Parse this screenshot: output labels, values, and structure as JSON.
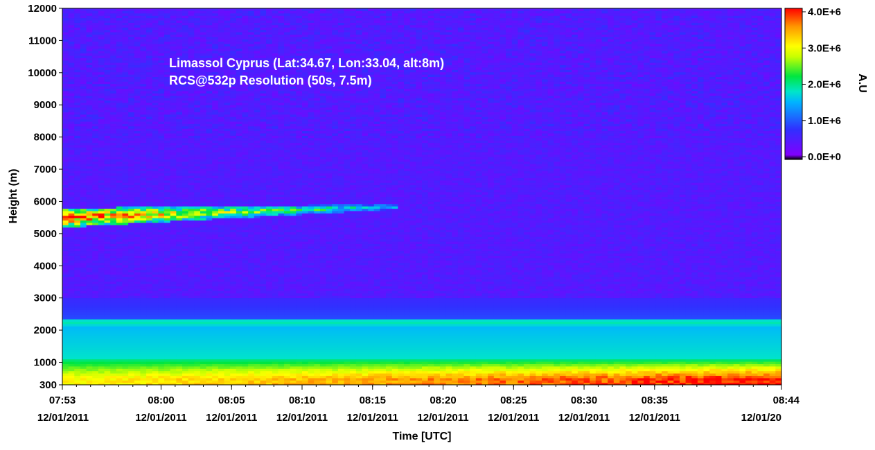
{
  "chart_data": {
    "type": "heatmap",
    "title": "",
    "annotations": [
      "Limassol Cyprus (Lat:34.67, Lon:33.04, alt:8m)",
      "RCS@532p Resolution (50s, 7.5m)"
    ],
    "xlabel": "Time [UTC]",
    "ylabel": "Height (m)",
    "colorbar_label": "A.U",
    "colorbar_ticks": [
      "4.0E+6",
      "3.0E+6",
      "2.0E+6",
      "1.0E+6",
      "0.0E+0"
    ],
    "colorbar_range": [
      0,
      4000000
    ],
    "colormap": [
      "#000000",
      "#8000ff",
      "#3030ff",
      "#00b4ff",
      "#00e6c8",
      "#00e640",
      "#c8ff00",
      "#ffff00",
      "#ff9600",
      "#ff0000"
    ],
    "x_ticks": [
      {
        "time": "07:53",
        "date": "12/01/2011"
      },
      {
        "time": "08:00",
        "date": "12/01/2011"
      },
      {
        "time": "08:05",
        "date": "12/01/2011"
      },
      {
        "time": "08:10",
        "date": "12/01/2011"
      },
      {
        "time": "08:15",
        "date": "12/01/2011"
      },
      {
        "time": "08:20",
        "date": "12/01/2011"
      },
      {
        "time": "08:25",
        "date": "12/01/2011"
      },
      {
        "time": "08:30",
        "date": "12/01/2011"
      },
      {
        "time": "08:35",
        "date": "12/01/2011"
      },
      {
        "time": "08:44",
        "date": "12/01/20"
      }
    ],
    "y_ticks": [
      300,
      1000,
      2000,
      3000,
      4000,
      5000,
      6000,
      7000,
      8000,
      9000,
      10000,
      11000,
      12000
    ],
    "xlim": [
      "07:53",
      "08:44"
    ],
    "ylim": [
      300,
      12000
    ],
    "features": [
      {
        "feature": "aerosol layer",
        "time_start": "07:53",
        "time_end": "08:17",
        "height_start_m": 5500,
        "height_end_m": 5850,
        "peak_value": 4000000
      },
      {
        "feature": "boundary layer top",
        "time_start": "07:53",
        "time_end": "08:44",
        "height_m": 2250,
        "value": 1700000
      },
      {
        "feature": "surface layer",
        "time_start": "07:53",
        "time_end": "08:44",
        "height_start_m": 300,
        "height_end_m": 900,
        "value_start": 3000000,
        "value_end": 4000000
      },
      {
        "feature": "free troposphere background",
        "height_start_m": 3000,
        "height_end_m": 12000,
        "value": 500000
      }
    ]
  }
}
